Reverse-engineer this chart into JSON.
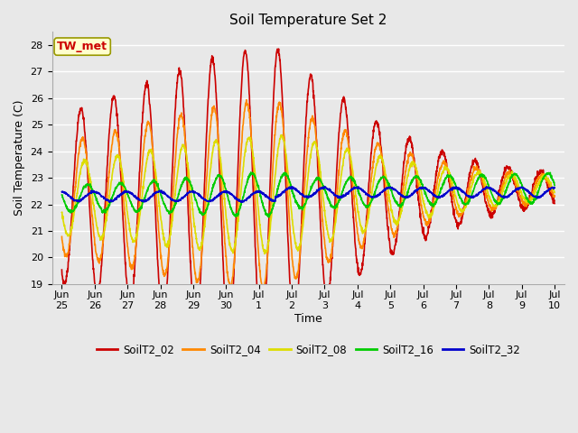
{
  "title": "Soil Temperature Set 2",
  "xlabel": "Time",
  "ylabel": "Soil Temperature (C)",
  "ylim": [
    19.0,
    28.5
  ],
  "yticks": [
    19.0,
    20.0,
    21.0,
    22.0,
    23.0,
    24.0,
    25.0,
    26.0,
    27.0,
    28.0
  ],
  "annotation_text": "TW_met",
  "annotation_color": "#cc0000",
  "annotation_bg": "#ffffcc",
  "annotation_border": "#999900",
  "bg_color": "#e8e8e8",
  "line_colors": {
    "SoilT2_02": "#cc0000",
    "SoilT2_04": "#ff8800",
    "SoilT2_08": "#dddd00",
    "SoilT2_16": "#00cc00",
    "SoilT2_32": "#0000cc"
  },
  "legend_labels": [
    "SoilT2_02",
    "SoilT2_04",
    "SoilT2_08",
    "SoilT2_16",
    "SoilT2_32"
  ],
  "x_tick_labels": [
    "Jun\n25",
    "Jun\n26",
    "Jun\n27",
    "Jun\n28",
    "Jun\n29",
    "Jun\n30",
    "Jul\n1",
    "Jul\n2",
    "Jul\n3",
    "Jul\n4",
    "Jul\n5",
    "Jul\n6",
    "Jul\n7",
    "Jul\n8",
    "Jul\n9",
    "Jul\n10"
  ],
  "n_days": 15,
  "samples_per_day": 144,
  "figsize": [
    6.4,
    4.8
  ],
  "dpi": 100
}
